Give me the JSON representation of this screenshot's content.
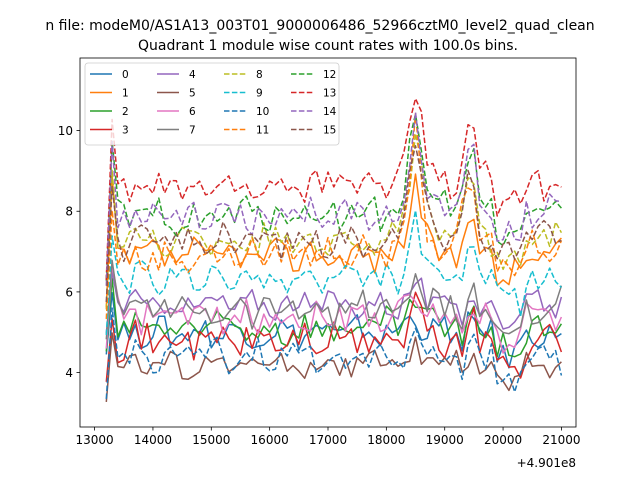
{
  "chart_data": {
    "type": "line",
    "suptitle": "n file: modeM0/AS1A13_003T01_9000006486_52966cztM0_level2_quad_clean",
    "title": "Quadrant 1 module wise count rates with 100.0s bins.",
    "xlabel": "",
    "ylabel": "",
    "x_offset_label": "+4.901e8",
    "xlim": [
      12750,
      21250
    ],
    "ylim": [
      2.65,
      11.8
    ],
    "xticks": [
      13000,
      14000,
      15000,
      16000,
      17000,
      18000,
      19000,
      20000,
      21000
    ],
    "yticks": [
      4,
      6,
      8,
      10
    ],
    "x_start": 13200,
    "x_step": 100,
    "legend_position": "top-left",
    "series": [
      {
        "name": "0",
        "color": "#1f77b4",
        "dash": false,
        "base": 5.0,
        "amp": 0.35,
        "ramp": 0.0,
        "spike": 0.45,
        "start_dip": 0.5,
        "s1": 1
      },
      {
        "name": "1",
        "color": "#ff7f0e",
        "dash": false,
        "base": 6.9,
        "amp": 0.35,
        "ramp": 0.0,
        "spike": 2.0,
        "start_dip": 1.5,
        "s1": 2
      },
      {
        "name": "2",
        "color": "#2ca02c",
        "dash": false,
        "base": 5.1,
        "amp": 0.4,
        "ramp": 0.0,
        "spike": 0.8,
        "start_dip": 1.0,
        "s1": 3
      },
      {
        "name": "3",
        "color": "#d62728",
        "dash": false,
        "base": 4.8,
        "amp": 0.4,
        "ramp": 0.0,
        "spike": 0.9,
        "start_dip": 0.7,
        "s1": 4
      },
      {
        "name": "4",
        "color": "#9467bd",
        "dash": false,
        "base": 5.7,
        "amp": 0.3,
        "ramp": 0.0,
        "spike": 0.5,
        "start_dip": 0.5,
        "s1": 5
      },
      {
        "name": "5",
        "color": "#8c564b",
        "dash": false,
        "base": 4.2,
        "amp": 0.3,
        "ramp": 0.0,
        "spike": 0.4,
        "start_dip": 0.8,
        "s1": 6
      },
      {
        "name": "6",
        "color": "#e377c2",
        "dash": false,
        "base": 5.4,
        "amp": 0.35,
        "ramp": 0.0,
        "spike": 0.5,
        "start_dip": 0.9,
        "s1": 7
      },
      {
        "name": "7",
        "color": "#7f7f7f",
        "dash": false,
        "base": 5.6,
        "amp": 0.4,
        "ramp": 0.0,
        "spike": 0.7,
        "start_dip": 1.2,
        "s1": 8
      },
      {
        "name": "8",
        "color": "#bcbd22",
        "dash": true,
        "base": 7.3,
        "amp": 0.35,
        "ramp": 0.0,
        "spike": 2.8,
        "start_dip": 1.6,
        "s1": 9
      },
      {
        "name": "9",
        "color": "#17becf",
        "dash": true,
        "base": 6.3,
        "amp": 0.35,
        "ramp": 0.0,
        "spike": 1.4,
        "start_dip": 1.3,
        "s1": 10
      },
      {
        "name": "10",
        "color": "#1f77b4",
        "dash": true,
        "base": 4.4,
        "amp": 0.35,
        "ramp": 0.0,
        "spike": 0.6,
        "start_dip": 1.0,
        "s1": 11
      },
      {
        "name": "11",
        "color": "#ff7f0e",
        "dash": true,
        "base": 6.8,
        "amp": 0.35,
        "ramp": 0.4,
        "spike": 2.9,
        "start_dip": 1.5,
        "s1": 12
      },
      {
        "name": "12",
        "color": "#2ca02c",
        "dash": true,
        "base": 7.8,
        "amp": 0.4,
        "ramp": 0.3,
        "spike": 2.4,
        "start_dip": 1.8,
        "s1": 13
      },
      {
        "name": "13",
        "color": "#d62728",
        "dash": true,
        "base": 8.5,
        "amp": 0.4,
        "ramp": 0.3,
        "spike": 2.6,
        "start_dip": 2.0,
        "s1": 14
      },
      {
        "name": "14",
        "color": "#9467bd",
        "dash": true,
        "base": 7.8,
        "amp": 0.35,
        "ramp": 0.2,
        "spike": 2.6,
        "start_dip": 1.7,
        "s1": 15
      },
      {
        "name": "15",
        "color": "#8c564b",
        "dash": true,
        "base": 7.2,
        "amp": 0.35,
        "ramp": 0.2,
        "spike": 2.6,
        "start_dip": 1.6,
        "s1": 16
      }
    ],
    "features": {
      "big_spike_x": 18500,
      "second_peak_x": 19400,
      "dip_x": 19300,
      "low_region_x": [
        19900,
        20300
      ]
    }
  }
}
